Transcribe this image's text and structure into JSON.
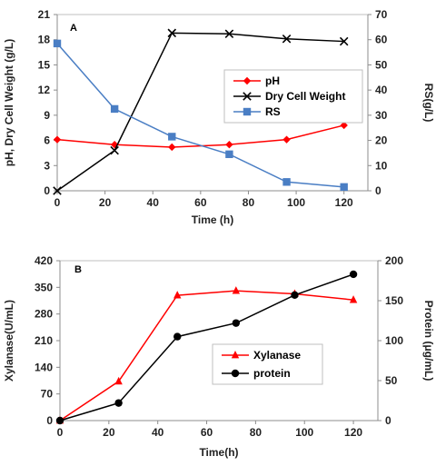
{
  "chart_data": [
    {
      "type": "line",
      "panel_label": "A",
      "x": [
        0,
        24,
        48,
        72,
        96,
        120
      ],
      "xlabel": "Time (h)",
      "xlim": [
        0,
        130
      ],
      "xticks": [
        0,
        20,
        40,
        60,
        80,
        100,
        120
      ],
      "ylabel_left": "pH, Dry Cell Weight (g/L)",
      "ylim_left": [
        0,
        21
      ],
      "yticks_left": [
        0,
        3,
        6,
        9,
        12,
        15,
        18,
        21
      ],
      "ylabel_right": "RS(g/L)",
      "ylim_right": [
        0,
        70
      ],
      "yticks_right": [
        0,
        10,
        20,
        30,
        40,
        50,
        60,
        70
      ],
      "grid": false,
      "legend_position": "center-right",
      "series": [
        {
          "name": "pH",
          "axis": "left",
          "color": "#ff0000",
          "marker": "diamond",
          "values": [
            6.1,
            5.5,
            5.2,
            5.5,
            6.1,
            7.8
          ]
        },
        {
          "name": "Dry Cell Weight",
          "axis": "left",
          "color": "#000000",
          "marker": "x",
          "values": [
            0.0,
            4.8,
            18.8,
            18.7,
            18.1,
            17.8
          ]
        },
        {
          "name": "RS",
          "axis": "right",
          "color": "#4a7ec4",
          "marker": "square",
          "values": [
            58.5,
            32.5,
            21.5,
            14.5,
            3.5,
            1.5
          ]
        }
      ]
    },
    {
      "type": "line",
      "panel_label": "B",
      "x": [
        0,
        24,
        48,
        72,
        96,
        120
      ],
      "xlabel": "Time(h)",
      "xlim": [
        0,
        130
      ],
      "xticks": [
        0,
        20,
        40,
        60,
        80,
        100,
        120
      ],
      "ylabel_left": "Xylanase(U/mL)",
      "ylim_left": [
        0,
        420
      ],
      "yticks_left": [
        0,
        70,
        140,
        210,
        280,
        350,
        420
      ],
      "ylabel_right": "Protein (μg/mL)",
      "ylim_right": [
        0,
        200
      ],
      "yticks_right": [
        0,
        50,
        100,
        150,
        200
      ],
      "grid": false,
      "legend_position": "center-right",
      "series": [
        {
          "name": "Xylanase",
          "axis": "left",
          "color": "#ff0000",
          "marker": "triangle",
          "values": [
            0,
            103,
            329,
            341,
            333,
            317
          ]
        },
        {
          "name": "protein",
          "axis": "right",
          "color": "#000000",
          "marker": "circle",
          "values": [
            0,
            22,
            105,
            122,
            157,
            183
          ]
        }
      ]
    }
  ]
}
